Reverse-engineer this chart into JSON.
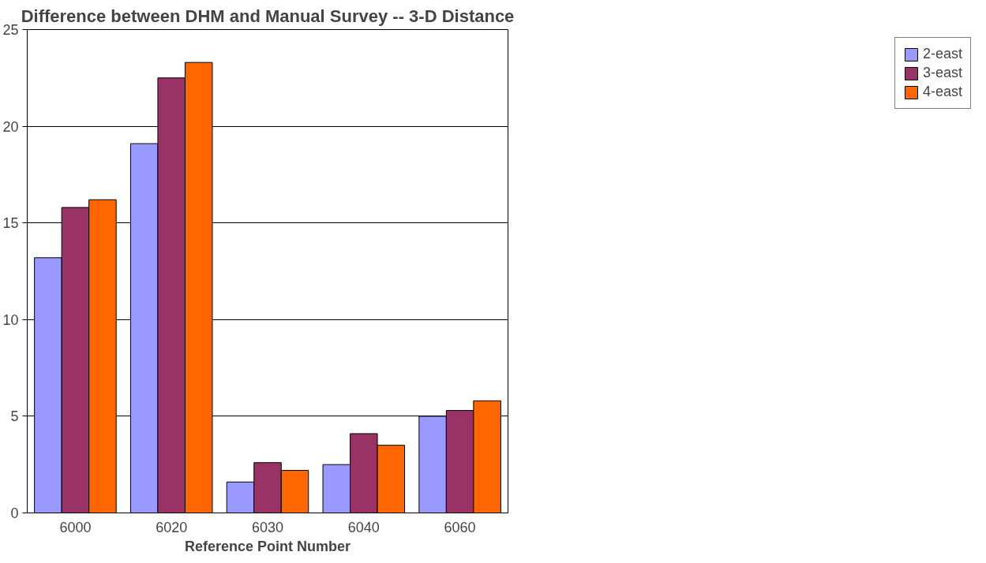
{
  "chart_data": {
    "type": "bar",
    "title": "Difference between DHM and Manual Survey -- 3-D Distance",
    "xlabel": "Reference Point Number",
    "categories": [
      "6000",
      "6020",
      "6030",
      "6040",
      "6060"
    ],
    "series": [
      {
        "name": "2-east",
        "color": "#9999ff",
        "values": [
          13.2,
          19.1,
          1.6,
          2.5,
          5.0
        ]
      },
      {
        "name": "3-east",
        "color": "#993366",
        "values": [
          15.8,
          22.5,
          2.6,
          4.1,
          5.3
        ]
      },
      {
        "name": "4-east",
        "color": "#ff6600",
        "values": [
          16.2,
          23.3,
          2.2,
          3.5,
          5.8
        ]
      }
    ],
    "ylim": [
      0,
      25
    ],
    "yticks": [
      0,
      5,
      10,
      15,
      20,
      25
    ],
    "grid": "y",
    "legend": "right"
  }
}
